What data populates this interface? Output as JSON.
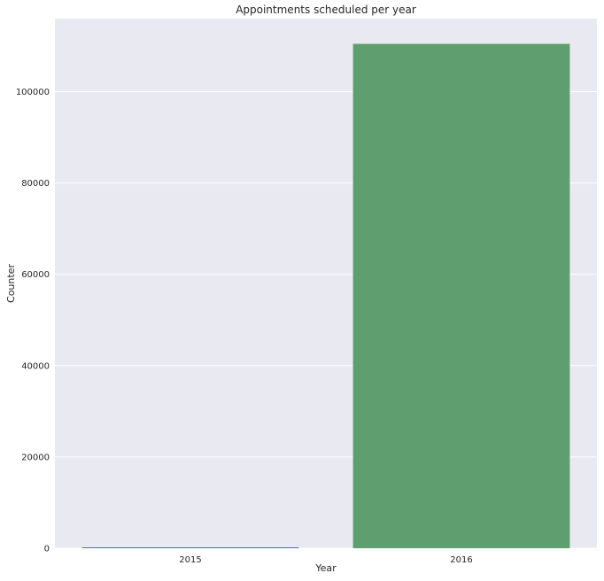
{
  "colors": {
    "plot_background": "#e9e9f1",
    "gridline": "#ffffff",
    "text": "#262626"
  },
  "chart_data": {
    "type": "bar",
    "title": "Appointments scheduled per year",
    "xlabel": "Year",
    "ylabel": "Counter",
    "categories": [
      "2015",
      "2016"
    ],
    "values": [
      62,
      110465
    ],
    "bar_colors": [
      "#4c72b0",
      "#5f9e6e"
    ],
    "ylim": [
      0,
      116000
    ],
    "yticks": [
      0,
      20000,
      40000,
      60000,
      80000,
      100000
    ],
    "ytick_labels": [
      "0",
      "20000",
      "40000",
      "60000",
      "80000",
      "100000"
    ],
    "grid": true,
    "legend": "none"
  }
}
